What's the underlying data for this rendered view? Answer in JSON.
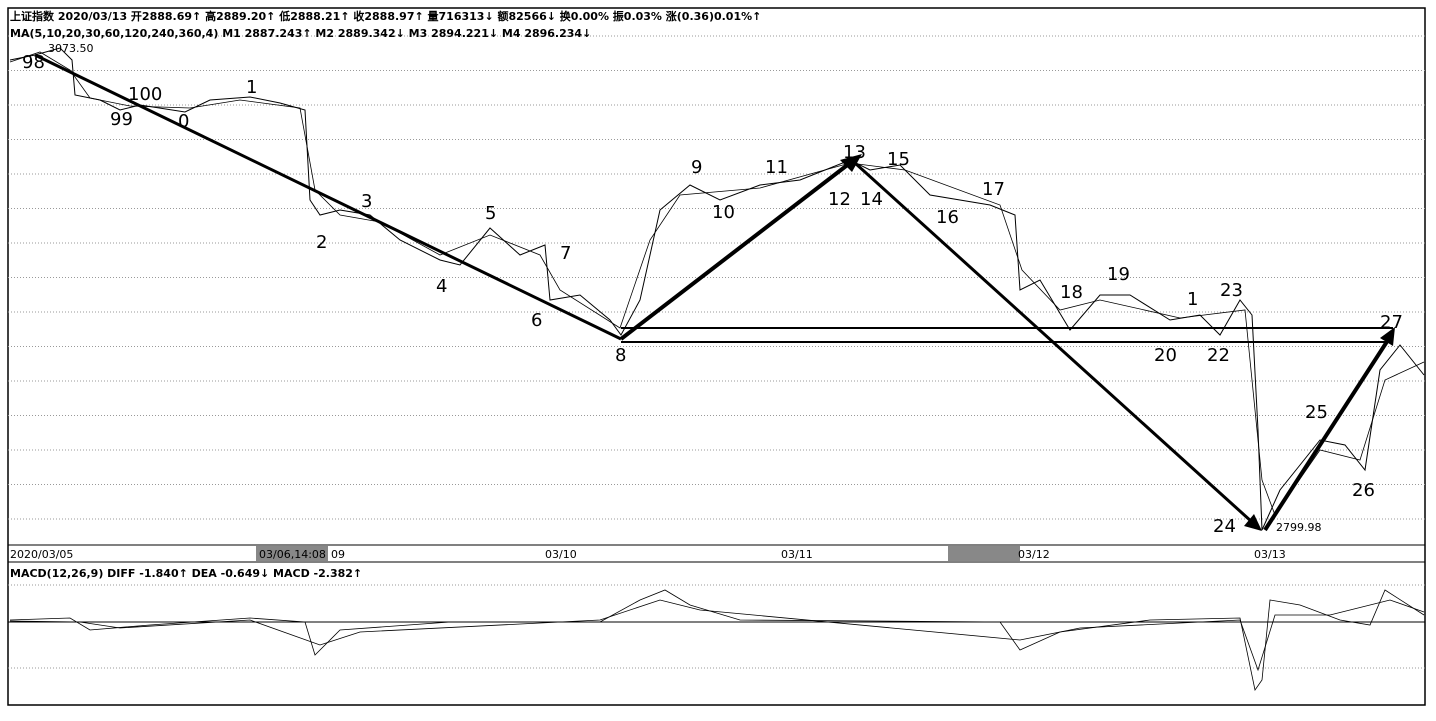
{
  "header": {
    "quote": "上证指数 2020/03/13 开2888.69↑ 高2889.20↑ 低2888.21↑ 收2888.97↑ 量716313↓ 额82566↓ 换0.00% 振0.03% 涨(0.36)0.01%↑",
    "ma": "MA(5,10,20,30,60,120,240,360,4)  M1 2887.243↑  M2 2889.342↓  M3 2894.221↓  M4 2896.234↓"
  },
  "price_labels": {
    "high": "3073.50",
    "low": "2799.98"
  },
  "wave_labels": [
    "98",
    "99",
    "100",
    "0",
    "1",
    "2",
    "3",
    "4",
    "5",
    "6",
    "7",
    "8",
    "9",
    "10",
    "11",
    "12",
    "13",
    "14",
    "15",
    "16",
    "17",
    "18",
    "19",
    "1",
    "20",
    "22",
    "23",
    "24",
    "25",
    "26",
    "27"
  ],
  "x_axis": [
    "2020/03/05",
    "03/06,14:08",
    "09",
    "03/10",
    "03/11",
    "03/12",
    "03/13"
  ],
  "macd": "MACD(12,26,9)  DIFF -1.840↑  DEA -0.649↓  MACD -2.382↑"
}
